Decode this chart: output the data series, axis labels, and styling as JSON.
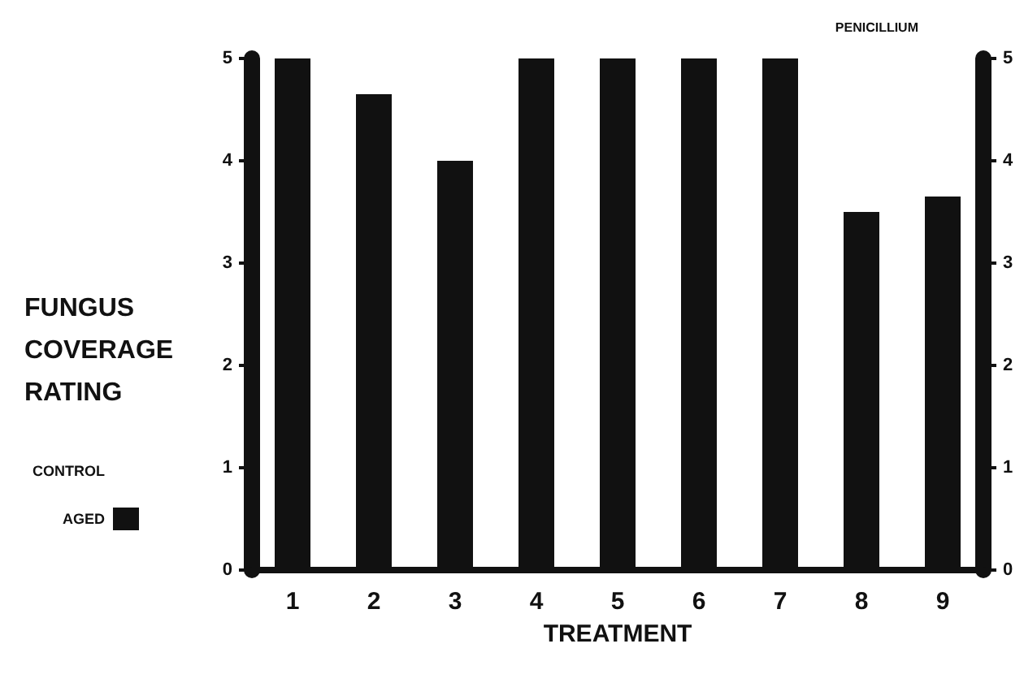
{
  "chart_data": {
    "type": "bar",
    "title": "PENICILLIUM",
    "xlabel": "TREATMENT",
    "ylabel": "FUNGUS COVERAGE RATING",
    "categories": [
      "1",
      "2",
      "3",
      "4",
      "5",
      "6",
      "7",
      "8",
      "9"
    ],
    "series": [
      {
        "name": "CONTROL",
        "values": [
          0,
          0,
          0,
          0,
          0,
          0,
          0,
          0,
          0
        ]
      },
      {
        "name": "AGED",
        "color": "#111111",
        "values": [
          5,
          4.65,
          4,
          5,
          5,
          5,
          5,
          3.5,
          3.65
        ]
      }
    ],
    "ylim": [
      0,
      5
    ],
    "yticks": [
      0,
      1,
      2,
      3,
      4,
      5
    ],
    "y2lim": [
      0,
      5
    ],
    "y2ticks": [
      0,
      1,
      2,
      3,
      4,
      5
    ],
    "grid": false,
    "legend": "left"
  }
}
